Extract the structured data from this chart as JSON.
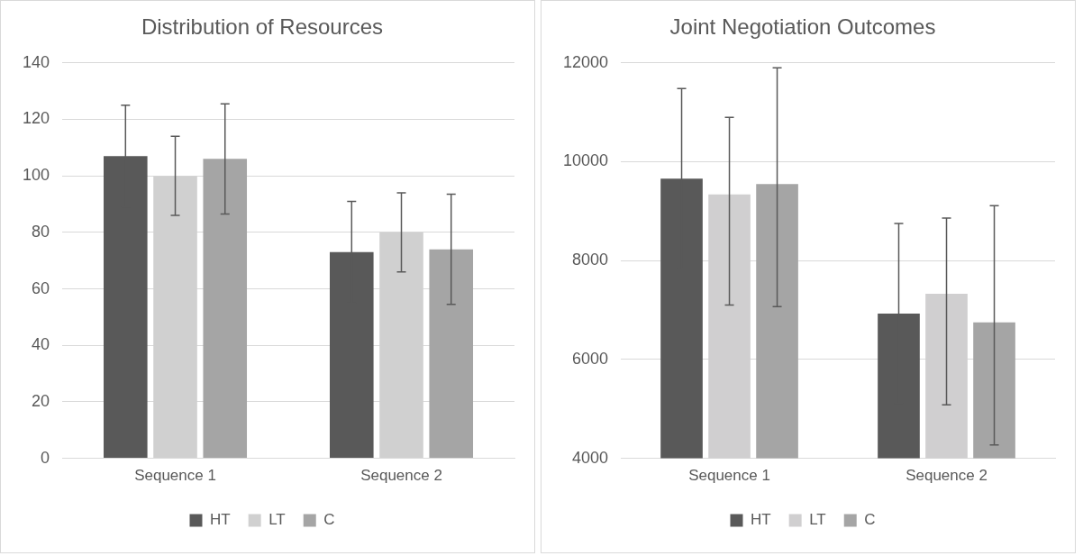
{
  "chart_data": [
    {
      "type": "bar",
      "title": "Distribution of Resources",
      "categories": [
        "Sequence 1",
        "Sequence 2"
      ],
      "ylim": [
        0,
        140
      ],
      "yticks": [
        0,
        20,
        40,
        60,
        80,
        100,
        120,
        140
      ],
      "grid": "y",
      "legend": "bottom",
      "series": [
        {
          "name": "HT",
          "color": "#595959",
          "values": [
            107,
            73
          ],
          "errors": [
            18,
            18
          ]
        },
        {
          "name": "LT",
          "color": "#d0d0d0",
          "values": [
            100,
            80
          ],
          "errors": [
            14,
            14
          ]
        },
        {
          "name": "C",
          "color": "#a5a5a5",
          "values": [
            106,
            74
          ],
          "errors": [
            19.5,
            19.5
          ]
        }
      ]
    },
    {
      "type": "bar",
      "title": "Joint Negotiation Outcomes",
      "categories": [
        "Sequence 1",
        "Sequence 2"
      ],
      "ylim": [
        4000,
        12000
      ],
      "yticks": [
        4000,
        6000,
        8000,
        10000,
        12000
      ],
      "grid": "y",
      "legend": "bottom",
      "series": [
        {
          "name": "HT",
          "color": "#595959",
          "values": [
            9660,
            6930
          ],
          "errors": [
            1820,
            1820
          ]
        },
        {
          "name": "LT",
          "color": "#d0cfd0",
          "values": [
            9340,
            7330
          ],
          "errors": [
            [
              7100,
              10900
            ],
            [
              5080,
              8860
            ]
          ]
        },
        {
          "name": "C",
          "color": "#a5a5a5",
          "values": [
            9550,
            6750
          ],
          "errors": [
            [
              7070,
              11900
            ],
            [
              4270,
              9110
            ]
          ]
        }
      ]
    }
  ]
}
